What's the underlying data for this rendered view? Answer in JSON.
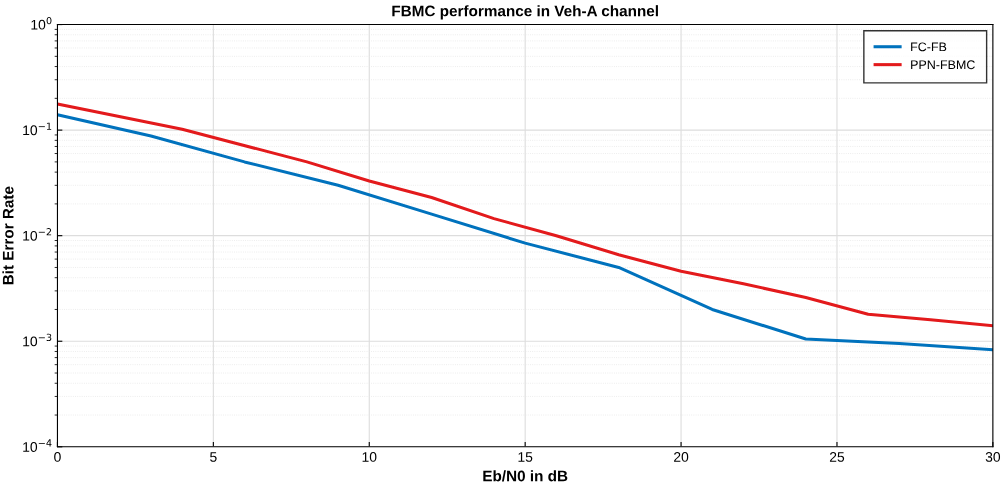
{
  "chart_data": {
    "type": "line",
    "title": "FBMC performance in Veh-A channel",
    "xlabel": "Eb/N0 in dB",
    "ylabel": "Bit Error Rate",
    "log": "y",
    "grid": true,
    "legend": "top right",
    "marker": "none",
    "line_style": "solid",
    "xlim": [
      0,
      30
    ],
    "xticks": [
      0,
      5,
      10,
      15,
      20,
      25,
      30
    ],
    "ylim": [
      0.0001,
      1
    ],
    "yticks": [
      {
        "value": 0.0001,
        "label": "10$^{−4}$"
      },
      {
        "value": 0.001,
        "label": "10$^{−3}$"
      },
      {
        "value": 0.01,
        "label": "10$^{−2}$"
      },
      {
        "value": 0.1,
        "label": "10$^{−1}$"
      },
      {
        "value": 1,
        "label": "10$^{0}$"
      }
    ],
    "series": [
      {
        "name": "FC-FB",
        "color": "#0072bd",
        "x": [
          0,
          3,
          6,
          9,
          12,
          15,
          18,
          21,
          24,
          27,
          30
        ],
        "values": [
          0.14,
          0.088,
          0.05,
          0.03,
          0.016,
          0.0085,
          0.005,
          0.002,
          0.00105,
          0.00095,
          0.00083
        ]
      },
      {
        "name": "PPN-FBMC",
        "color": "#e31a1c",
        "x": [
          0,
          4,
          8,
          10,
          12,
          14,
          16,
          18,
          20,
          22,
          24,
          26,
          28,
          30
        ],
        "values": [
          0.177,
          0.102,
          0.05,
          0.033,
          0.023,
          0.0145,
          0.01,
          0.0066,
          0.0046,
          0.0035,
          0.0026,
          0.0018,
          0.0016,
          0.0014
        ]
      }
    ]
  }
}
